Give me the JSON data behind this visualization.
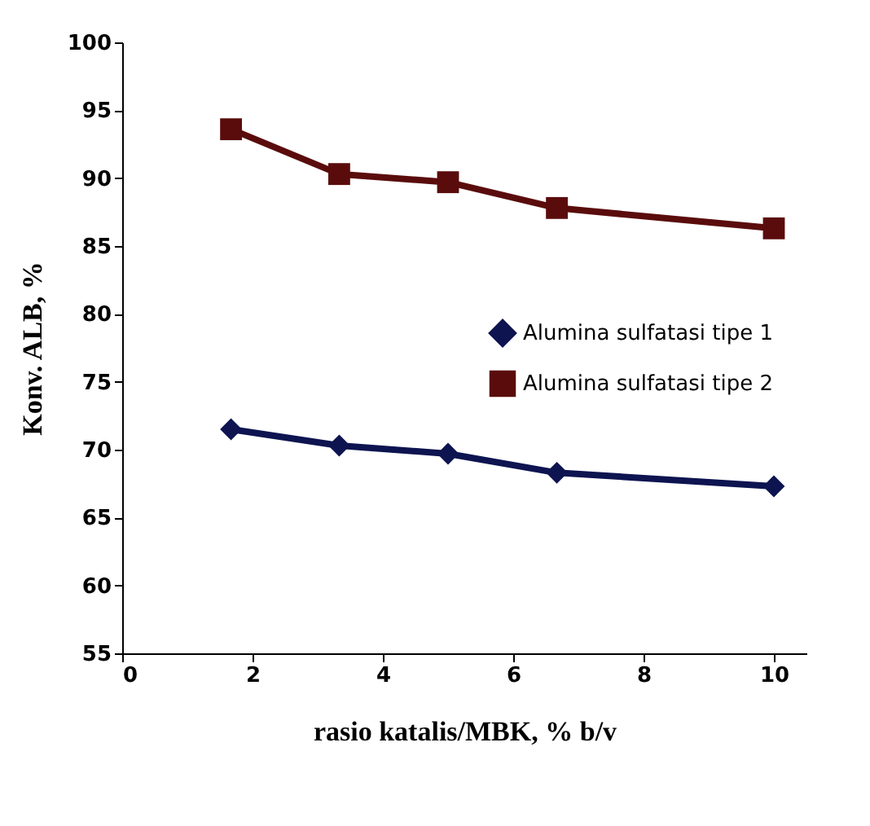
{
  "chart_data": {
    "type": "line",
    "xlabel": "rasio katalis/MBK, % b/v",
    "ylabel": "Konv. ALB, %",
    "x": [
      1.67,
      3.33,
      5,
      6.67,
      10
    ],
    "series": [
      {
        "name": "Alumina sulfatasi tipe 1",
        "color": "#0d1450",
        "marker": "diamond",
        "values": [
          71.5,
          70.3,
          69.7,
          68.3,
          67.3
        ]
      },
      {
        "name": "Alumina sulfatasi tipe 2",
        "color": "#5a0c0c",
        "marker": "square",
        "values": [
          93.6,
          90.3,
          89.7,
          87.8,
          86.3
        ]
      }
    ],
    "xlim": [
      0,
      10.5
    ],
    "xticks": [
      0,
      2,
      4,
      6,
      8,
      10
    ],
    "ylim": [
      55,
      100
    ],
    "yticks": [
      55,
      60,
      65,
      70,
      75,
      80,
      85,
      90,
      95,
      100
    ],
    "grid": false,
    "legend": "right",
    "line_style": "solid"
  }
}
